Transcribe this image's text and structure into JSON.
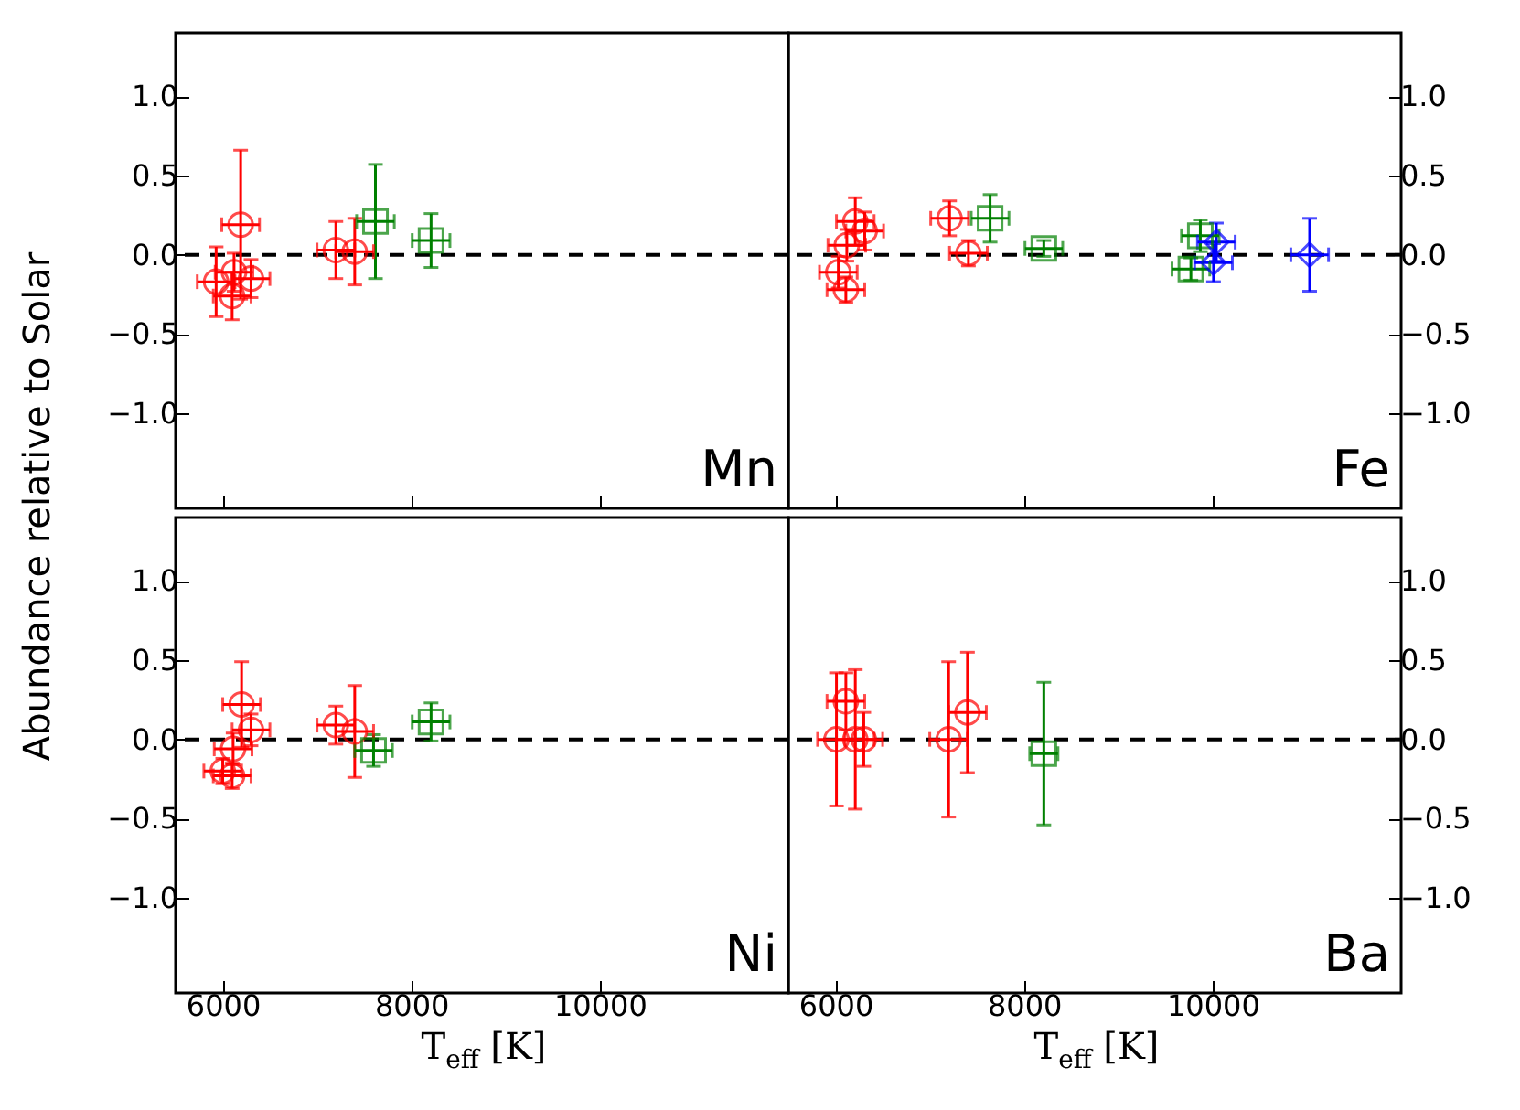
{
  "chart_data": [
    {
      "type": "scatter",
      "ylabel": "Abundance relative to Solar",
      "annotations": [
        "Mn"
      ],
      "xlim": [
        5500,
        12000
      ],
      "xticks": [
        6000,
        8000,
        10000
      ],
      "ylim": [
        -1.6,
        1.4
      ],
      "yticks": [
        {
          "value": -1.0,
          "label": "−1.0"
        },
        {
          "value": -0.5,
          "label": "−0.5"
        },
        {
          "value": 0,
          "label": "0.0"
        },
        {
          "value": 0.5,
          "label": "0.5"
        },
        {
          "value": 1.0,
          "label": "1.0"
        }
      ],
      "tick_labels": "y",
      "grid": false,
      "ref_lines": [
        {
          "axis": "y",
          "value": 0,
          "color": "#000000",
          "line_style": "dashed"
        }
      ],
      "series": [
        {
          "color": "#ff0000",
          "marker": "circle",
          "x": [
            6190,
            5930,
            6120,
            6100,
            6300,
            7200,
            7400
          ],
          "values": [
            0.19,
            -0.17,
            -0.11,
            -0.26,
            -0.15,
            0.03,
            0.02
          ],
          "errors": [
            0.47,
            0.22,
            0.12,
            0.15,
            0.12,
            0.18,
            0.21
          ],
          "xerrors": [
            200,
            200,
            200,
            200,
            200,
            200,
            200
          ]
        },
        {
          "color": "#008000",
          "marker": "square",
          "x": [
            7620,
            8210
          ],
          "values": [
            0.21,
            0.09
          ],
          "errors": [
            0.36,
            0.17
          ],
          "xerrors": [
            200,
            200
          ]
        }
      ]
    },
    {
      "type": "scatter",
      "annotations": [
        "Fe"
      ],
      "xlim": [
        5500,
        12000
      ],
      "xticks": [
        6000,
        8000,
        10000
      ],
      "ylim": [
        -1.6,
        1.4
      ],
      "yticks": [
        {
          "value": -1.0,
          "label": "−1.0"
        },
        {
          "value": -0.5,
          "label": "−0.5"
        },
        {
          "value": 0,
          "label": "0.0"
        },
        {
          "value": 0.5,
          "label": "0.5"
        },
        {
          "value": 1.0,
          "label": "1.0"
        }
      ],
      "tick_labels": "y",
      "grid": false,
      "ref_lines": [
        {
          "axis": "y",
          "value": 0,
          "color": "#000000",
          "line_style": "dashed"
        }
      ],
      "series": [
        {
          "color": "#ff0000",
          "marker": "circle",
          "x": [
            6210,
            6310,
            6120,
            6030,
            6110,
            7210,
            7410
          ],
          "values": [
            0.21,
            0.15,
            0.06,
            -0.11,
            -0.22,
            0.23,
            0.01
          ],
          "errors": [
            0.15,
            0.12,
            0.1,
            0.1,
            0.08,
            0.11,
            0.08
          ],
          "xerrors": [
            200,
            200,
            200,
            200,
            200,
            200,
            200
          ]
        },
        {
          "color": "#008000",
          "marker": "square",
          "x": [
            7640,
            8210,
            9870,
            9770
          ],
          "values": [
            0.23,
            0.04,
            0.12,
            -0.09
          ],
          "errors": [
            0.15,
            0.05,
            0.1,
            0.07
          ],
          "xerrors": [
            200,
            200,
            200,
            200
          ]
        },
        {
          "color": "#0000ff",
          "marker": "diamond",
          "x": [
            10040,
            10010,
            11030
          ],
          "values": [
            0.08,
            -0.05,
            0.0
          ],
          "errors": [
            0.12,
            0.12,
            0.23
          ],
          "xerrors": [
            200,
            200,
            200
          ]
        }
      ]
    },
    {
      "type": "scatter",
      "xlabel": "T$_{eff}$ [K]",
      "annotations": [
        "Ni"
      ],
      "xlim": [
        5500,
        12000
      ],
      "xticks": [
        6000,
        8000,
        10000
      ],
      "ylim": [
        -1.6,
        1.4
      ],
      "yticks": [
        {
          "value": -1.0,
          "label": "−1.0"
        },
        {
          "value": -0.5,
          "label": "−0.5"
        },
        {
          "value": 0,
          "label": "0.0"
        },
        {
          "value": 0.5,
          "label": "0.5"
        },
        {
          "value": 1.0,
          "label": "1.0"
        }
      ],
      "grid": false,
      "ref_lines": [
        {
          "axis": "y",
          "value": 0,
          "color": "#000000",
          "line_style": "dashed"
        }
      ],
      "series": [
        {
          "color": "#ff0000",
          "marker": "circle",
          "x": [
            6200,
            6300,
            6110,
            6000,
            6100,
            7200,
            7400
          ],
          "values": [
            0.22,
            0.06,
            -0.06,
            -0.2,
            -0.23,
            0.09,
            0.05
          ],
          "errors": [
            0.27,
            0.1,
            0.1,
            0.08,
            0.08,
            0.12,
            0.29
          ],
          "xerrors": [
            200,
            200,
            200,
            200,
            200,
            200,
            200
          ]
        },
        {
          "color": "#008000",
          "marker": "square",
          "x": [
            7600,
            8210
          ],
          "values": [
            -0.07,
            0.11
          ],
          "errors": [
            0.1,
            0.12
          ],
          "xerrors": [
            200,
            200
          ]
        }
      ]
    },
    {
      "type": "scatter",
      "xlabel": "T$_{eff}$ [K]",
      "annotations": [
        "Ba"
      ],
      "xlim": [
        5500,
        12000
      ],
      "xticks": [
        6000,
        8000,
        10000
      ],
      "ylim": [
        -1.6,
        1.4
      ],
      "yticks": [
        {
          "value": -1.0,
          "label": "−1.0"
        },
        {
          "value": -0.5,
          "label": "−0.5"
        },
        {
          "value": 0,
          "label": "0.0"
        },
        {
          "value": 0.5,
          "label": "0.5"
        },
        {
          "value": 1.0,
          "label": "1.0"
        }
      ],
      "grid": false,
      "ref_lines": [
        {
          "axis": "y",
          "value": 0,
          "color": "#000000",
          "line_style": "dashed"
        }
      ],
      "series": [
        {
          "color": "#ff0000",
          "marker": "circle",
          "x": [
            6010,
            6110,
            6210,
            6300,
            7200,
            7400
          ],
          "values": [
            0.0,
            0.24,
            0.0,
            0.0,
            0.0,
            0.17
          ],
          "errors": [
            0.42,
            0.18,
            0.44,
            0.17,
            0.49,
            0.38
          ],
          "xerrors": [
            200,
            200,
            200,
            200,
            200,
            200
          ]
        },
        {
          "color": "#008000",
          "marker": "square",
          "x": [
            8210
          ],
          "values": [
            -0.09
          ],
          "errors": [
            0.45
          ],
          "xerrors": [
            150
          ]
        }
      ]
    }
  ]
}
